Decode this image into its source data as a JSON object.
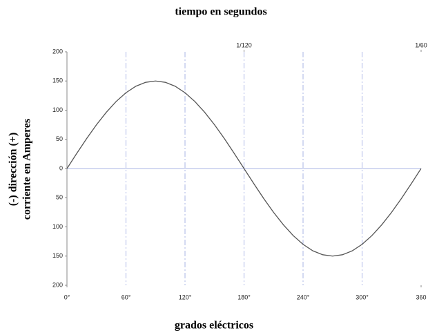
{
  "chart_data": {
    "type": "line",
    "title": "tiempo en segundos",
    "xlabel": "grados eléctricos",
    "ylabel": [
      "(-) dirección (+)",
      "corriente en Amperes"
    ],
    "x": [
      0,
      10,
      20,
      30,
      40,
      50,
      60,
      70,
      80,
      90,
      100,
      110,
      120,
      130,
      140,
      150,
      160,
      170,
      180,
      190,
      200,
      210,
      220,
      230,
      240,
      250,
      260,
      270,
      280,
      290,
      300,
      310,
      320,
      330,
      340,
      350,
      360
    ],
    "series": [
      {
        "color": "#555555",
        "values": [
          0,
          26,
          51.3,
          75,
          96.4,
          114.9,
          129.9,
          141,
          147.7,
          150,
          147.7,
          141,
          129.9,
          114.9,
          96.4,
          75,
          51.3,
          26,
          0,
          -26,
          -51.3,
          -75,
          -96.4,
          -114.9,
          -129.9,
          -141,
          -147.7,
          -150,
          -147.7,
          -141,
          -129.9,
          -114.9,
          -96.4,
          -75,
          -51.3,
          -26,
          0
        ]
      }
    ],
    "xlim": [
      0,
      360
    ],
    "ylim": [
      -200,
      200
    ],
    "xticks": [
      {
        "value": 0,
        "label": "0°"
      },
      {
        "value": 60,
        "label": "60°"
      },
      {
        "value": 120,
        "label": "120°"
      },
      {
        "value": 180,
        "label": "180°"
      },
      {
        "value": 240,
        "label": "240°"
      },
      {
        "value": 300,
        "label": "300°"
      },
      {
        "value": 360,
        "label": "360"
      }
    ],
    "x2ticks": [
      {
        "value": 180,
        "label": "1/120"
      },
      {
        "value": 360,
        "label": "1/60"
      }
    ],
    "yticks": [
      {
        "value": -200,
        "label": "200"
      },
      {
        "value": -150,
        "label": "150"
      },
      {
        "value": -100,
        "label": "100"
      },
      {
        "value": -50,
        "label": "50"
      },
      0,
      50,
      100,
      150,
      200
    ],
    "grid": true,
    "grid_color": "#aab4e6"
  }
}
